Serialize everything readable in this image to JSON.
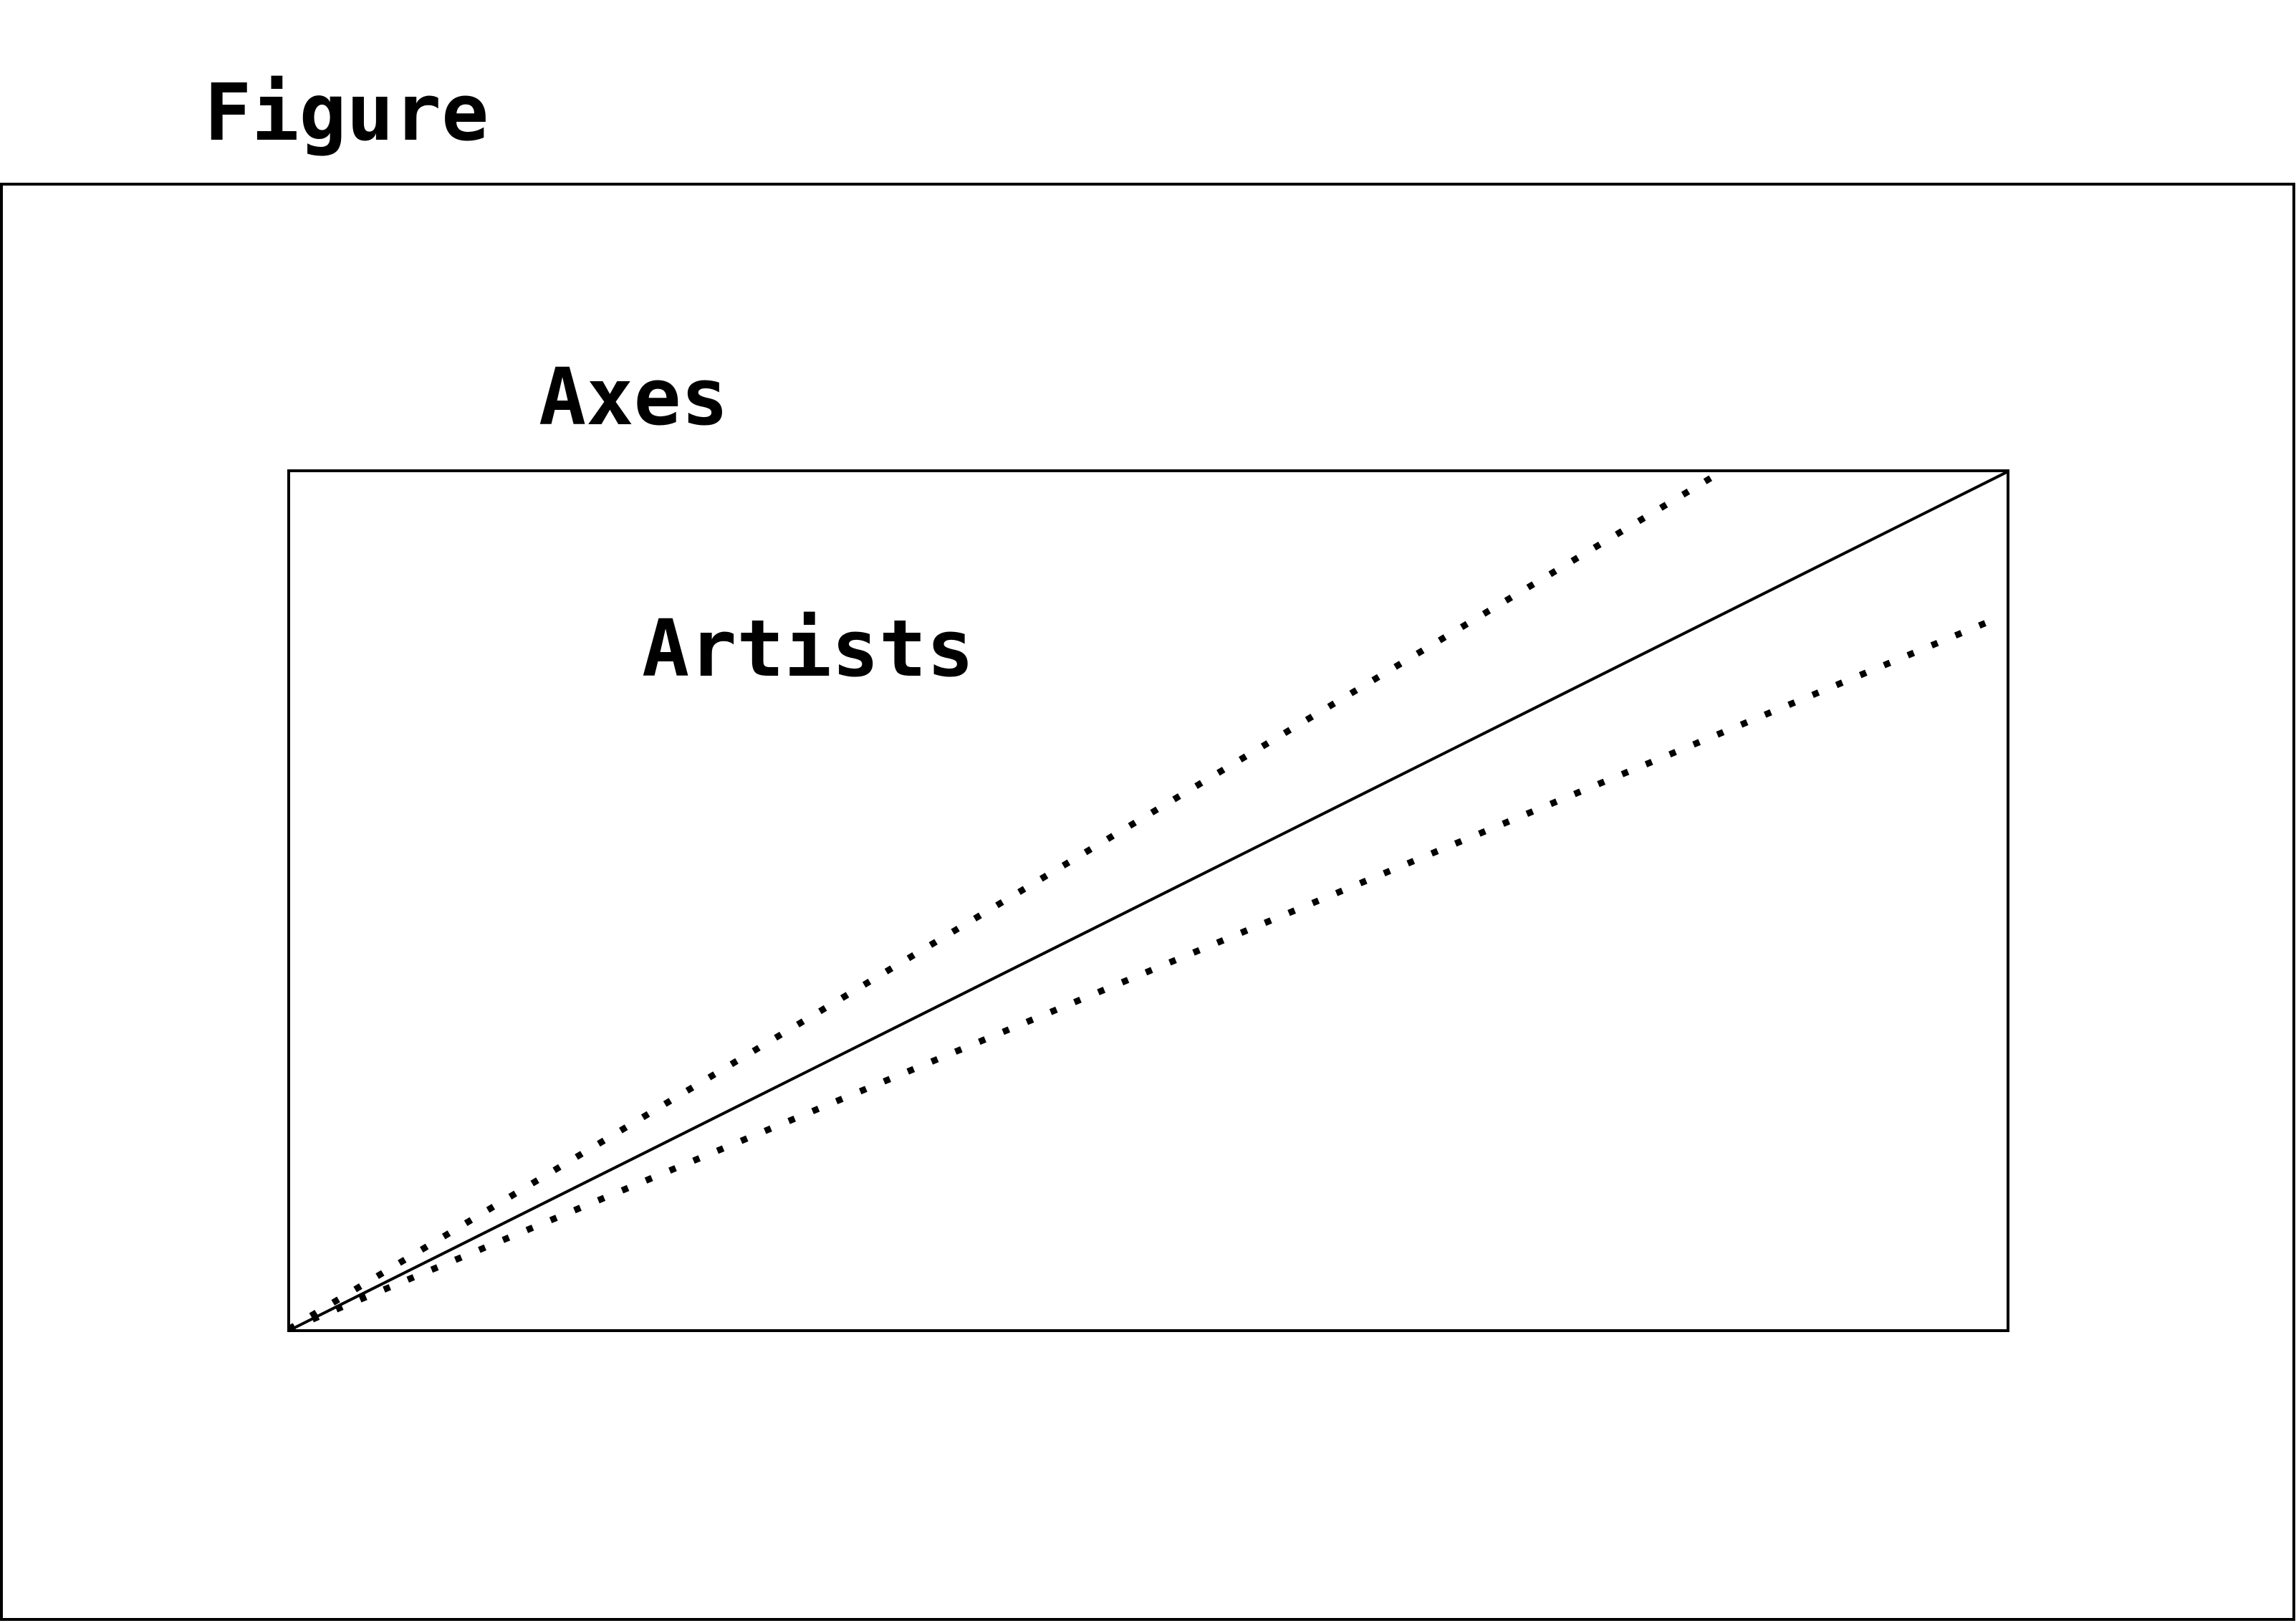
{
  "labels": {
    "figure": "Figure",
    "axes": "Axes",
    "artists": "Artists"
  },
  "colors": {
    "stroke": "#000000",
    "background": "#ffffff"
  }
}
